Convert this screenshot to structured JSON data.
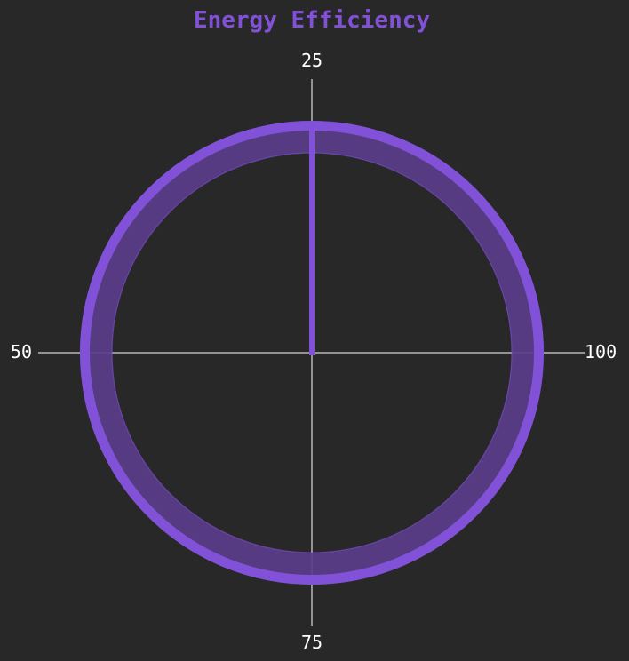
{
  "chart_data": {
    "type": "polar",
    "title": "Energy Efficiency",
    "ticks": [
      {
        "label": "25",
        "position": "top"
      },
      {
        "label": "50",
        "position": "left"
      },
      {
        "label": "75",
        "position": "bottom"
      },
      {
        "label": "100",
        "position": "right"
      }
    ],
    "series": [
      {
        "values": [
          75
        ]
      }
    ],
    "range": [
      0,
      100
    ],
    "grid": true
  },
  "colors": {
    "background": "#282828",
    "accent": "#8152d8",
    "ring_fill": "#5a3d8a",
    "axis": "#ffffff",
    "text": "#ffffff"
  }
}
